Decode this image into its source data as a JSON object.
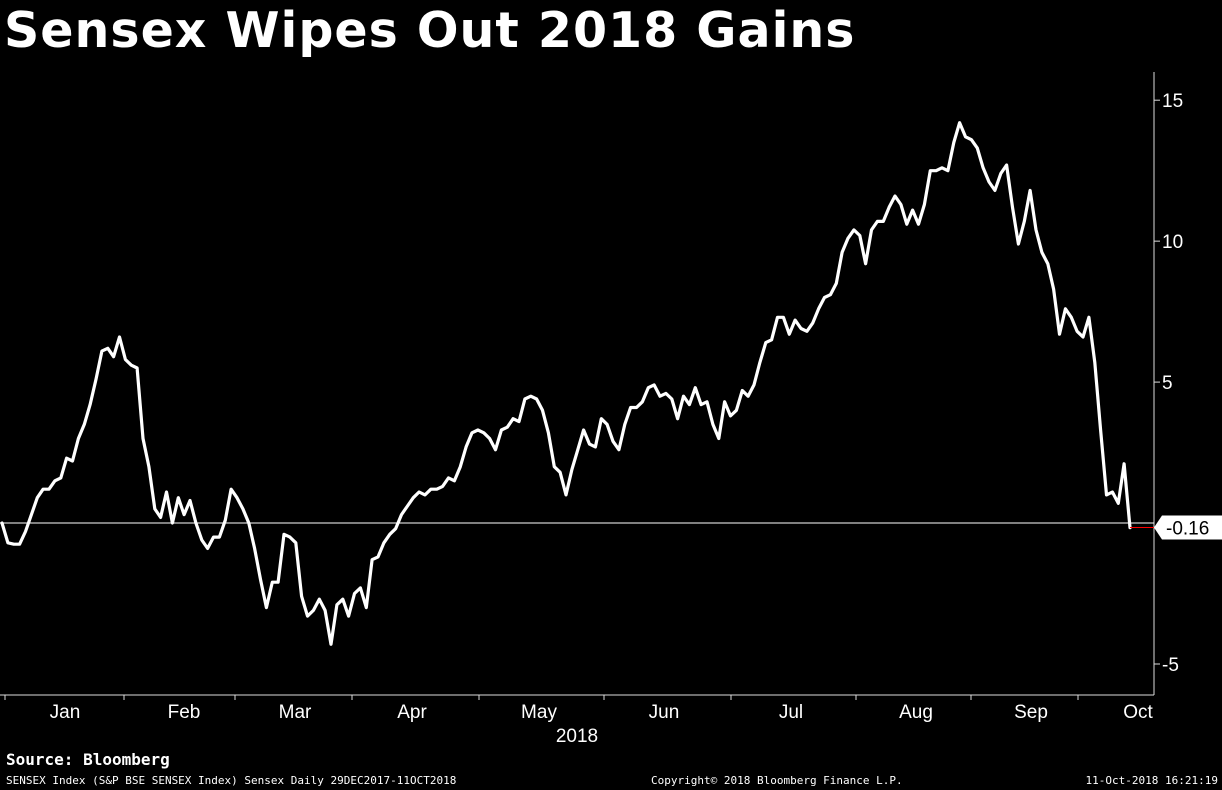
{
  "title": "Sensex Wipes Out 2018 Gains",
  "source": "Source: Bloomberg",
  "footer": {
    "left": "SENSEX Index (S&P BSE SENSEX Index) Sensex  Daily 29DEC2017-11OCT2018",
    "middle": "Copyright© 2018 Bloomberg Finance L.P.",
    "right": "11-Oct-2018 16:21:19"
  },
  "colors": {
    "background": "#000000",
    "line": "#ffffff",
    "last_marker": "#ff0000"
  },
  "chart_data": {
    "type": "line",
    "x_tick_labels": [
      "Jan",
      "Feb",
      "Mar",
      "Apr",
      "May",
      "Jun",
      "Jul",
      "Aug",
      "Sep",
      "Oct"
    ],
    "x_year_label": "2018",
    "y_ticks": [
      15,
      10,
      5,
      -5
    ],
    "ylim": [
      -6.1,
      16
    ],
    "last_value_label": "-0.16",
    "y_axis_position": "right",
    "grid": false,
    "reference_line": 0,
    "series_values": [
      0.0,
      -0.7,
      -0.75,
      -0.75,
      -0.3,
      0.3,
      0.9,
      1.2,
      1.2,
      1.5,
      1.6,
      2.3,
      2.2,
      3.0,
      3.5,
      4.2,
      5.1,
      6.1,
      6.2,
      5.9,
      6.6,
      5.8,
      5.6,
      5.5,
      3.0,
      2.0,
      0.5,
      0.2,
      1.1,
      0.0,
      0.9,
      0.3,
      0.8,
      0.0,
      -0.6,
      -0.9,
      -0.5,
      -0.5,
      0.1,
      1.2,
      0.9,
      0.5,
      0.0,
      -0.9,
      -2.0,
      -3.0,
      -2.1,
      -2.1,
      -0.4,
      -0.5,
      -0.7,
      -2.6,
      -3.3,
      -3.1,
      -2.7,
      -3.1,
      -4.3,
      -2.9,
      -2.7,
      -3.3,
      -2.5,
      -2.3,
      -3.0,
      -1.3,
      -1.2,
      -0.7,
      -0.4,
      -0.2,
      0.3,
      0.6,
      0.9,
      1.1,
      1.0,
      1.2,
      1.2,
      1.3,
      1.6,
      1.5,
      2.0,
      2.7,
      3.2,
      3.3,
      3.2,
      3.0,
      2.6,
      3.3,
      3.4,
      3.7,
      3.6,
      4.4,
      4.5,
      4.4,
      4.0,
      3.2,
      2.0,
      1.8,
      1.0,
      1.9,
      2.6,
      3.3,
      2.8,
      2.7,
      3.7,
      3.5,
      2.9,
      2.6,
      3.5,
      4.1,
      4.1,
      4.3,
      4.8,
      4.9,
      4.5,
      4.6,
      4.4,
      3.7,
      4.5,
      4.2,
      4.8,
      4.2,
      4.3,
      3.5,
      3.0,
      4.3,
      3.8,
      4.0,
      4.7,
      4.5,
      4.9,
      5.7,
      6.4,
      6.5,
      7.3,
      7.3,
      6.7,
      7.2,
      6.9,
      6.8,
      7.1,
      7.6,
      8.0,
      8.1,
      8.5,
      9.6,
      10.1,
      10.4,
      10.2,
      9.2,
      10.4,
      10.7,
      10.7,
      11.2,
      11.6,
      11.3,
      10.6,
      11.1,
      10.6,
      11.3,
      12.5,
      12.5,
      12.6,
      12.5,
      13.5,
      14.2,
      13.7,
      13.6,
      13.3,
      12.6,
      12.1,
      11.8,
      12.4,
      12.7,
      11.2,
      9.9,
      10.7,
      11.8,
      10.4,
      9.6,
      9.2,
      8.3,
      6.7,
      7.6,
      7.3,
      6.8,
      6.6,
      7.3,
      5.7,
      3.3,
      1.0,
      1.1,
      0.7,
      2.1,
      -0.16
    ]
  }
}
